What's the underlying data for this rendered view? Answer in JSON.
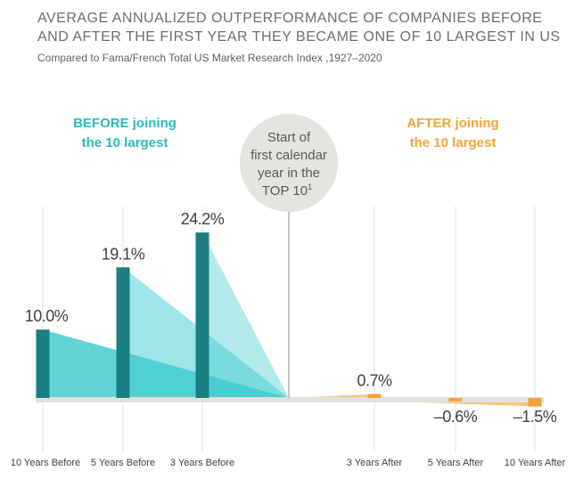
{
  "header": {
    "title_line1": "AVERAGE ANNUALIZED OUTPERFORMANCE OF COMPANIES BEFORE",
    "title_line2": "AND AFTER THE FIRST YEAR THEY BECAME ONE OF 10 LARGEST IN US",
    "subtitle": "Compared to Fama/French Total US Market Research Index ,1927–2020"
  },
  "labels": {
    "before_line1": "BEFORE joining",
    "before_line2": "the 10 largest",
    "after_line1": "AFTER joining",
    "after_line2": "the 10 largest",
    "center_line1": "Start of",
    "center_line2": "first calendar",
    "center_line3": "year in the",
    "center_line4": "TOP 10",
    "center_sup": "1"
  },
  "colors": {
    "before_bar": "#1a7f82",
    "after_bar": "#f5a238",
    "before_fill": "#3fcbd0",
    "after_fill": "#f7b45a",
    "circle": "#e6e4df",
    "axis": "#e3e1dc"
  },
  "chart_data": {
    "type": "bar",
    "categories": [
      "10 Years Before",
      "5 Years Before",
      "3 Years Before",
      "3 Years After",
      "5 Years After",
      "10 Years After"
    ],
    "values": [
      10.0,
      19.1,
      24.2,
      0.7,
      -0.6,
      -1.5
    ],
    "value_labels": [
      "10.0%",
      "19.1%",
      "24.2%",
      "0.7%",
      "–0.6%",
      "–1.5%"
    ],
    "groups": [
      "before",
      "before",
      "before",
      "after",
      "after",
      "after"
    ],
    "title": "AVERAGE ANNUALIZED OUTPERFORMANCE OF COMPANIES BEFORE AND AFTER THE FIRST YEAR THEY BECAME ONE OF 10 LARGEST IN US",
    "subtitle": "Compared to Fama/French Total US Market Research Index ,1927–2020",
    "grid": true
  }
}
